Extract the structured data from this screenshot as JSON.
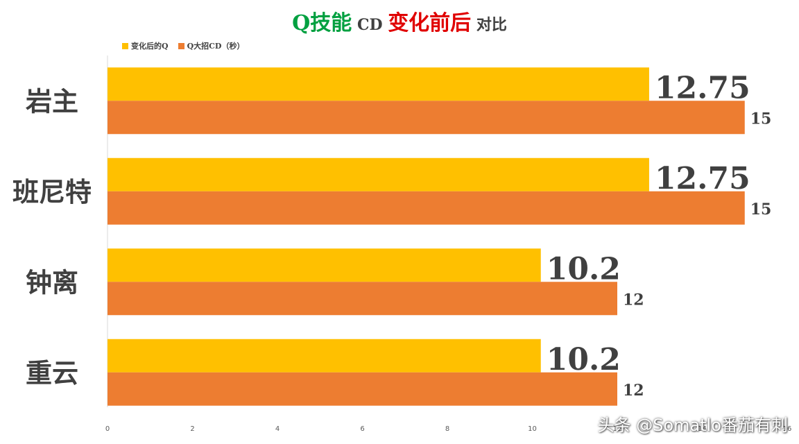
{
  "title": {
    "part1": "Q技能",
    "part2": " CD ",
    "part3": "变化前后",
    "part4": " 对比"
  },
  "colors": {
    "title_green": "#00A040",
    "title_gray": "#404040",
    "title_red": "#E00000",
    "series_after": "#FFC000",
    "series_before": "#ED7D31",
    "label_text": "#404040",
    "axis": "#D9D9D9"
  },
  "chart_data": {
    "type": "bar",
    "orientation": "horizontal",
    "categories": [
      "岩主",
      "班尼特",
      "钟离",
      "重云"
    ],
    "series": [
      {
        "name": "变化后的Q",
        "values": [
          12.75,
          12.75,
          10.2,
          10.2
        ]
      },
      {
        "name": "Q大招CD（秒）",
        "values": [
          15,
          15,
          12,
          12
        ]
      }
    ],
    "value_labels": [
      [
        "12.75",
        "12.75",
        "10.2",
        "10.2"
      ],
      [
        "15",
        "15",
        "12",
        "12"
      ]
    ],
    "xlim": [
      0,
      16
    ],
    "xticks": [
      "0",
      "2",
      "4",
      "6",
      "8",
      "10",
      "12",
      "14",
      "16"
    ],
    "grid": false,
    "legend": "top-left"
  },
  "watermark": "头条 @Somatlo番茄有刺"
}
